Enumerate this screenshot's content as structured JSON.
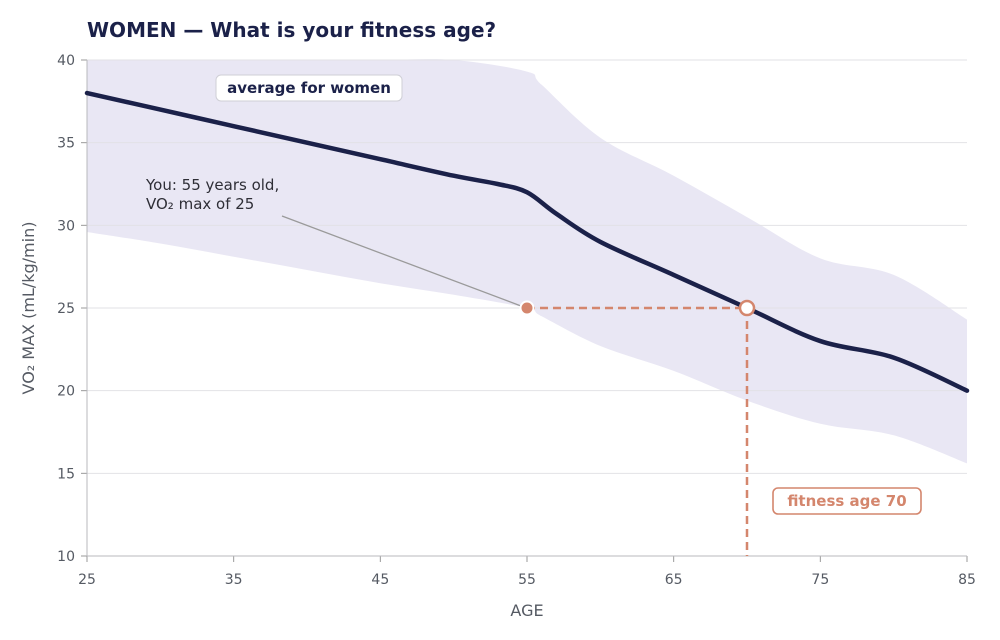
{
  "chart_data": {
    "type": "line",
    "title": "WOMEN — What is your fitness age?",
    "xlabel": "AGE",
    "ylabel": "VO₂ MAX (mL/kg/min)",
    "xlim": [
      25,
      85
    ],
    "ylim": [
      10,
      40
    ],
    "x_ticks": [
      25,
      35,
      45,
      55,
      65,
      75,
      85
    ],
    "y_ticks": [
      10,
      15,
      20,
      25,
      30,
      35,
      40
    ],
    "grid": "horizontal",
    "colors": {
      "title": "#1b2149",
      "average_line": "#1b2149",
      "band": "#e9e7f4",
      "highlight": "#d4866d",
      "annotation_line": "#9a9a9a",
      "grid": "#e2e2e6"
    },
    "series": [
      {
        "name": "average for women",
        "x": [
          25,
          30,
          35,
          40,
          45,
          50,
          53,
          55,
          57,
          60,
          65,
          70,
          75,
          80,
          85
        ],
        "y": [
          38,
          37,
          36,
          35,
          34,
          33,
          32.5,
          32,
          30.7,
          29,
          27,
          25,
          23,
          22,
          20
        ]
      }
    ],
    "band": {
      "x": [
        25,
        30,
        35,
        40,
        45,
        50,
        55,
        56,
        60,
        65,
        70,
        75,
        80,
        85
      ],
      "upper": [
        40,
        40,
        40,
        40,
        40,
        40,
        39.3,
        38.5,
        35.3,
        33,
        30.5,
        28,
        27,
        24.3
      ],
      "lower": [
        29.6,
        28.9,
        28.1,
        27.3,
        26.5,
        25.8,
        25,
        24.5,
        22.7,
        21.2,
        19.4,
        18,
        17.3,
        15.6
      ]
    },
    "you_point": {
      "age": 55,
      "vo2max": 25
    },
    "fitness_age_point": {
      "age": 70,
      "vo2max": 25
    },
    "annotations": {
      "average_label": "average for women",
      "you_label_line1": "You: 55 years old,",
      "you_label_line2": "VO₂ max of 25",
      "fitness_age_label": "fitness age 70"
    }
  }
}
